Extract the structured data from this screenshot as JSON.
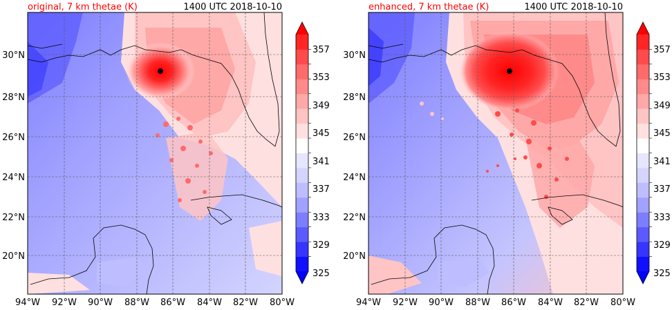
{
  "figure": {
    "panels": [
      {
        "title_left": "original, 7 km thetae (K)",
        "title_right": "1400 UTC 2018-10-10",
        "storm_center": {
          "lon": -86.6,
          "lat": 29.2
        },
        "colorbar": {
          "labels": [
            "357",
            "353",
            "349",
            "345",
            "341",
            "337",
            "333",
            "329",
            "325"
          ]
        }
      },
      {
        "title_left": "enhanced, 7 km thetae (K)",
        "title_right": "1400 UTC 2018-10-10",
        "storm_center": {
          "lon": -86.1,
          "lat": 29.2
        },
        "colorbar": {
          "labels": [
            "357",
            "353",
            "349",
            "345",
            "341",
            "337",
            "333",
            "329",
            "325"
          ]
        }
      }
    ],
    "x_ticks": [
      "94°W",
      "92°W",
      "90°W",
      "88°W",
      "86°W",
      "84°W",
      "82°W",
      "80°W"
    ],
    "y_ticks": [
      "30°N",
      "28°N",
      "26°N",
      "24°N",
      "22°N",
      "20°N"
    ],
    "colors": {
      "title_left": "#ff0000",
      "levels": [
        "#1010ff",
        "#3535ff",
        "#5a5aff",
        "#7d7dff",
        "#a1a1ff",
        "#bdbdff",
        "#d4d4ff",
        "#e6e6ff",
        "#ffffff",
        "#ffe0e0",
        "#ffc4c4",
        "#ffa8a8",
        "#ff8a8a",
        "#ff6b6b",
        "#ff4b4b",
        "#ff2525"
      ],
      "coast": "#000000",
      "grid": "#555555"
    }
  }
}
